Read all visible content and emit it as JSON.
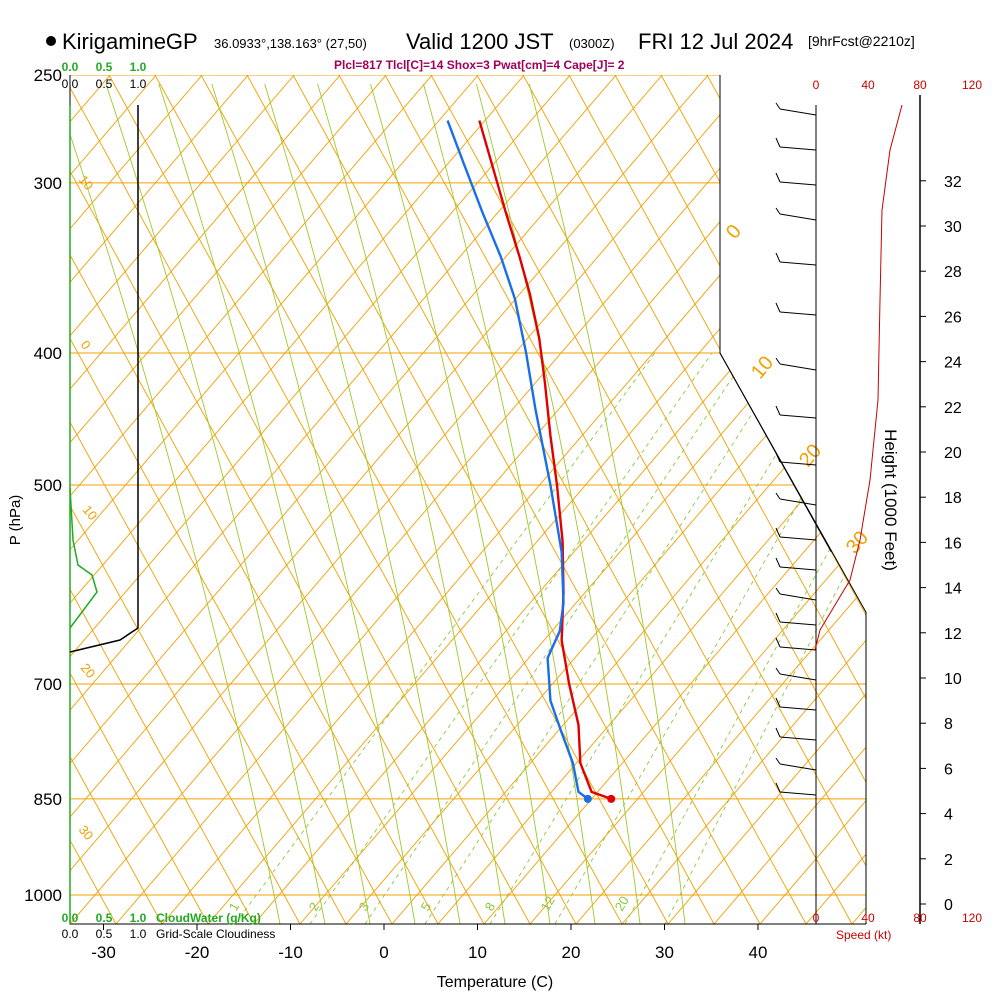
{
  "header": {
    "station": "KirigamineGP",
    "coords": "36.0933°,138.163° (27,50)",
    "valid": "Valid 1200 JST",
    "utc": "(0300Z)",
    "date": "FRI 12 Jul 2024",
    "forecast": "[9hrFcst@2210z]",
    "indices": "Plcl=817 Tlcl[C]=14 Shox=3 Pwat[cm]=4 Cape[J]= 2"
  },
  "chart_data": {
    "type": "line",
    "title": "",
    "xlabel": "Temperature (C)",
    "ylabel": "P (hPa)",
    "x_ticks": [
      -30,
      -20,
      -10,
      0,
      10,
      20,
      30,
      40
    ],
    "y_ticks": [
      250,
      300,
      400,
      500,
      700,
      850,
      1000
    ],
    "xlim": [
      -35,
      45
    ],
    "ylim": [
      1050,
      250
    ],
    "y_scale": "log",
    "series": [
      {
        "name": "",
        "color": "#e00000",
        "points": [
          [
            10.2,
            270
          ],
          [
            11.5,
            290
          ],
          [
            13.0,
            315
          ],
          [
            14.5,
            340
          ],
          [
            15.6,
            362
          ],
          [
            16.6,
            390
          ],
          [
            17.2,
            420
          ],
          [
            17.8,
            460
          ],
          [
            18.5,
            500
          ],
          [
            19.1,
            550
          ],
          [
            19.2,
            600
          ],
          [
            19.0,
            650
          ],
          [
            19.8,
            700
          ],
          [
            20.8,
            750
          ],
          [
            21.0,
            800
          ],
          [
            22.2,
            840
          ],
          [
            24.3,
            850
          ]
        ]
      },
      {
        "name": "",
        "color": "#1a6fe8",
        "points": [
          [
            6.8,
            270
          ],
          [
            8.5,
            290
          ],
          [
            10.5,
            315
          ],
          [
            12.5,
            340
          ],
          [
            14.0,
            365
          ],
          [
            15.2,
            400
          ],
          [
            16.2,
            440
          ],
          [
            17.8,
            500
          ],
          [
            19.0,
            560
          ],
          [
            19.2,
            610
          ],
          [
            18.8,
            640
          ],
          [
            17.5,
            670
          ],
          [
            17.8,
            720
          ],
          [
            19.0,
            760
          ],
          [
            20.2,
            800
          ],
          [
            20.8,
            840
          ],
          [
            21.8,
            850
          ]
        ]
      }
    ],
    "surface_temp_label": "",
    "cloud_water_ticks": [
      "0.0",
      "0.5",
      "1.0"
    ],
    "cloudiness_ticks": [
      "0.0",
      "0.5",
      "1.0"
    ],
    "cloud_water_label": "CloudWater (g/Kg)",
    "cloudiness_label": "Grid-Scale Cloudiness",
    "height_ticks": [
      0,
      2,
      4,
      6,
      8,
      10,
      12,
      14,
      16,
      18,
      20,
      22,
      24,
      26,
      28,
      30,
      32
    ],
    "height_label": "Height (1000 Feet)",
    "speed_ticks": [
      0,
      40,
      80,
      120
    ],
    "speed_label": "Speed (kt)",
    "isotherm_labels": [
      {
        "text": "10"
      },
      {
        "text": "0"
      },
      {
        "text": "10"
      },
      {
        "text": "20"
      },
      {
        "text": "30"
      },
      {
        "text": "0"
      },
      {
        "text": "10"
      },
      {
        "text": "20"
      },
      {
        "text": "30"
      }
    ],
    "mixing_ratio_labels": [
      "1",
      "2",
      "3",
      "5",
      "8",
      "12",
      "20"
    ]
  },
  "colors": {
    "isotherm": "#f0a000",
    "mixing": "#8cc83c",
    "dry_adiabat": "#a0c828",
    "temperature": "#e00000",
    "dewpoint": "#1a6fe8",
    "wind": "#000000",
    "speed": "#cc0000",
    "cloud": "#22aa22",
    "indices": "#a0005a"
  }
}
